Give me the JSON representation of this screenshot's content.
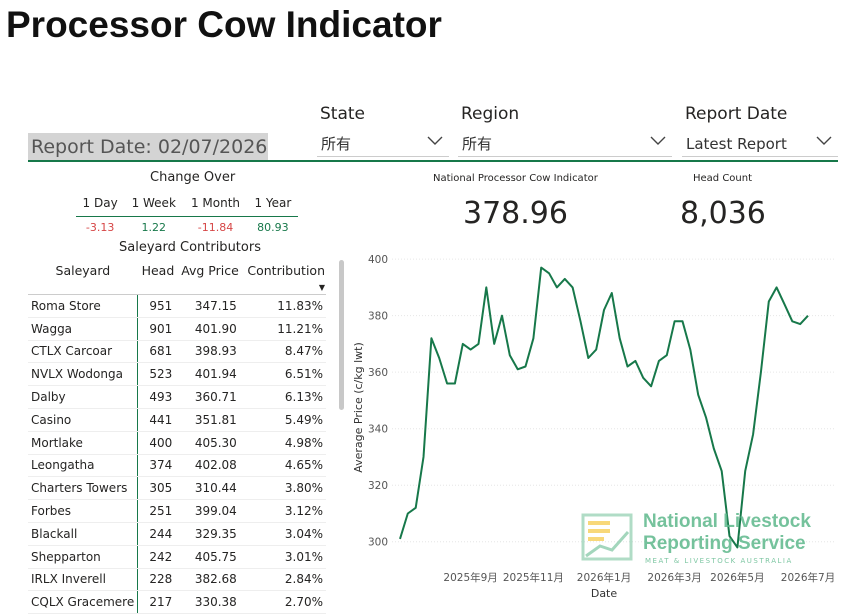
{
  "header": {
    "title": "Processor Cow Indicator"
  },
  "filters": [
    {
      "label": "State",
      "value": "所有"
    },
    {
      "label": "Region",
      "value": "所有"
    },
    {
      "label": "Report Date",
      "value": "Latest Report"
    }
  ],
  "report_date": "Report Date: 02/07/2026",
  "change_over": {
    "title": "Change Over",
    "columns": [
      "1 Day",
      "1 Week",
      "1 Month",
      "1 Year"
    ],
    "values": [
      "-3.13",
      "1.22",
      "-11.84",
      "80.93"
    ]
  },
  "kpis": [
    {
      "label": "National Processor Cow Indicator",
      "value": "378.96"
    },
    {
      "label": "Head Count",
      "value": "8,036"
    }
  ],
  "table": {
    "title": "Saleyard Contributors",
    "columns": [
      "Saleyard",
      "Head",
      "Avg Price",
      "Contribution"
    ],
    "rows": [
      [
        "Roma Store",
        "951",
        "347.15",
        "11.83%"
      ],
      [
        "Wagga",
        "901",
        "401.90",
        "11.21%"
      ],
      [
        "CTLX Carcoar",
        "681",
        "398.93",
        "8.47%"
      ],
      [
        "NVLX Wodonga",
        "523",
        "401.94",
        "6.51%"
      ],
      [
        "Dalby",
        "493",
        "360.71",
        "6.13%"
      ],
      [
        "Casino",
        "441",
        "351.81",
        "5.49%"
      ],
      [
        "Mortlake",
        "400",
        "405.30",
        "4.98%"
      ],
      [
        "Leongatha",
        "374",
        "402.08",
        "4.65%"
      ],
      [
        "Charters Towers",
        "305",
        "310.44",
        "3.80%"
      ],
      [
        "Forbes",
        "251",
        "399.04",
        "3.12%"
      ],
      [
        "Blackall",
        "244",
        "329.35",
        "3.04%"
      ],
      [
        "Shepparton",
        "242",
        "405.75",
        "3.01%"
      ],
      [
        "IRLX Inverell",
        "228",
        "382.68",
        "2.84%"
      ],
      [
        "CQLX Gracemere",
        "217",
        "330.38",
        "2.70%"
      ]
    ]
  },
  "logo": {
    "line1": "National Livestock",
    "line2": "Reporting Service",
    "line3": "MEAT & LIVESTOCK AUSTRALIA"
  },
  "chart_data": {
    "type": "line",
    "x_label": "Date",
    "y_label": "Average Price (c/kg lwt)",
    "categories": [
      null,
      null,
      null,
      null,
      null,
      null,
      null,
      null,
      null,
      "2025年9月",
      null,
      null,
      null,
      null,
      null,
      null,
      null,
      "2025年11月",
      null,
      null,
      null,
      null,
      null,
      null,
      null,
      null,
      "2026年1月",
      null,
      null,
      null,
      null,
      null,
      null,
      null,
      null,
      "2026年3月",
      null,
      null,
      null,
      null,
      null,
      null,
      null,
      "2026年5月",
      null,
      null,
      null,
      null,
      null,
      null,
      null,
      null,
      "2026年7月"
    ],
    "series": [
      {
        "name": "Average Price",
        "color": "#17784a",
        "values": [
          301,
          310,
          312,
          330,
          372,
          365,
          356,
          356,
          370,
          368,
          370,
          390,
          370,
          380,
          366,
          361,
          362,
          372,
          397,
          395,
          390,
          393,
          390,
          378,
          365,
          368,
          382,
          388,
          372,
          362,
          364,
          358,
          355,
          364,
          366,
          378,
          378,
          368,
          352,
          344,
          333,
          325,
          302,
          298,
          325,
          338,
          360,
          385,
          390,
          384,
          378,
          377,
          380
        ]
      }
    ],
    "ylim": [
      290,
      405
    ],
    "yticks": [
      300,
      320,
      340,
      360,
      380,
      400
    ],
    "grid": true
  }
}
